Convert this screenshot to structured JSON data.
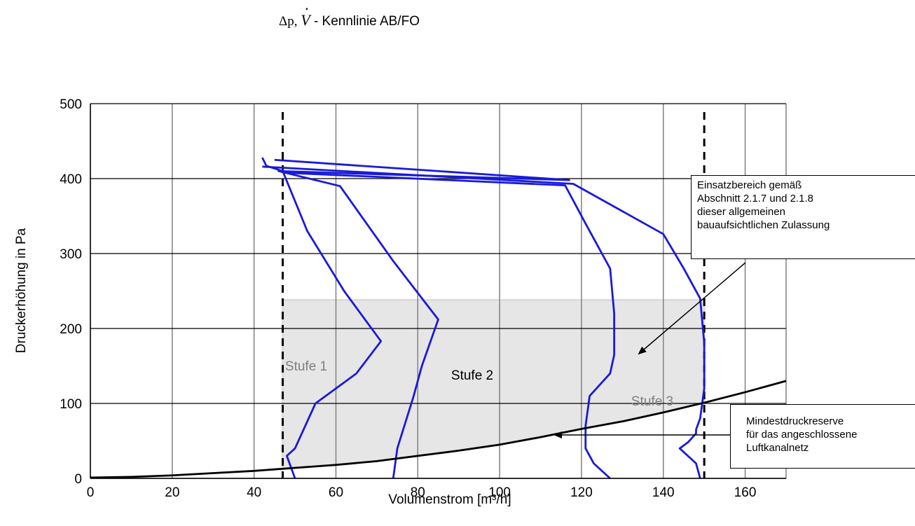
{
  "chart_data": {
    "type": "line",
    "title_prefix": "Δp, ",
    "title_symbol": "V",
    "title_suffix": " - Kennlinie AB/FO",
    "xlabel": "Volumenstrom  [m³/h]",
    "ylabel": "Druckerhöhung in Pa",
    "xlim": [
      0,
      170
    ],
    "ylim": [
      0,
      500
    ],
    "x_ticks": [
      0,
      20,
      40,
      60,
      80,
      100,
      120,
      140,
      160
    ],
    "y_ticks": [
      0,
      100,
      200,
      300,
      400,
      500
    ],
    "grid": true,
    "series": [
      {
        "points": [
          [
            50,
            0
          ],
          [
            49,
            15
          ],
          [
            48,
            30
          ],
          [
            50,
            40
          ],
          [
            55,
            100
          ],
          [
            65,
            140
          ],
          [
            71,
            183
          ],
          [
            62,
            250
          ],
          [
            53,
            330
          ],
          [
            47,
            410
          ],
          [
            43,
            417
          ],
          [
            42,
            428
          ]
        ],
        "color": "#1a1ad8"
      },
      {
        "points": [
          [
            74,
            0
          ],
          [
            75,
            40
          ],
          [
            77,
            75
          ],
          [
            79,
            110
          ],
          [
            81,
            150
          ],
          [
            85,
            212
          ],
          [
            74,
            290
          ],
          [
            61,
            390
          ],
          [
            46,
            410
          ],
          [
            117,
            398
          ],
          [
            45,
            425
          ]
        ],
        "color": "#1a1ad8"
      },
      {
        "points": [
          [
            127,
            0
          ],
          [
            123,
            20
          ],
          [
            121,
            40
          ],
          [
            121,
            70
          ],
          [
            122,
            110
          ],
          [
            127,
            140
          ],
          [
            128,
            165
          ],
          [
            128,
            220
          ],
          [
            127,
            280
          ],
          [
            121,
            340
          ],
          [
            116,
            391
          ],
          [
            47,
            408
          ]
        ],
        "color": "#1a1ad8"
      },
      {
        "points": [
          [
            149,
            0
          ],
          [
            148,
            20
          ],
          [
            144,
            40
          ],
          [
            146,
            48
          ],
          [
            148,
            60
          ],
          [
            148,
            65
          ],
          [
            149,
            80
          ],
          [
            150,
            120
          ],
          [
            150,
            180
          ],
          [
            149,
            240
          ],
          [
            145,
            280
          ],
          [
            140,
            326
          ],
          [
            118,
            393
          ],
          [
            42,
            416
          ]
        ],
        "color": "#1a1ad8"
      },
      {
        "points": [
          [
            0,
            1
          ],
          [
            10,
            2
          ],
          [
            20,
            4
          ],
          [
            30,
            7
          ],
          [
            40,
            10
          ],
          [
            50,
            14
          ],
          [
            60,
            18
          ],
          [
            70,
            23
          ],
          [
            80,
            30
          ],
          [
            90,
            37
          ],
          [
            100,
            45
          ],
          [
            110,
            55
          ],
          [
            120,
            66
          ],
          [
            130,
            76
          ],
          [
            140,
            88
          ],
          [
            150,
            101
          ],
          [
            160,
            115
          ],
          [
            170,
            130
          ]
        ],
        "color": "#000000"
      }
    ],
    "reference_lines": [
      {
        "x": 47,
        "style": "dashed"
      },
      {
        "x": 150,
        "style": "dashed"
      }
    ],
    "shaded_region": {
      "x_from": 47,
      "x_to": 150,
      "y_top": 238
    },
    "annotations": {
      "stufe1": "Stufe 1",
      "stufe2": "Stufe 2",
      "stufe3": "Stufe 3",
      "einsatzbereich_lines": [
        "Einsatzbereich gemäß",
        "Abschnitt 2.1.7 und 2.1.8",
        "dieser allgemeinen",
        "bauaufsichtlichen Zulassung"
      ],
      "mindestdruck_lines": [
        "Mindestdruckreserve",
        "für das angeschlossene",
        "Luftkanalnetz"
      ]
    }
  }
}
